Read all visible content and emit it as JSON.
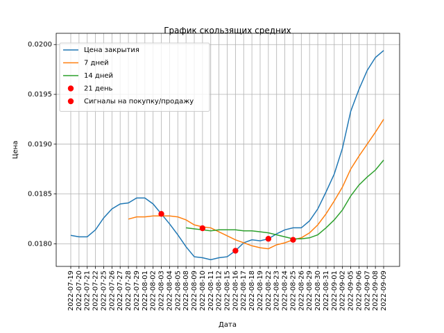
{
  "chart_data": {
    "type": "line",
    "title": "График скользящих средних",
    "xlabel": "Дата",
    "ylabel": "Цена",
    "categories": [
      "2022-07-19",
      "2022-07-20",
      "2022-07-21",
      "2022-07-22",
      "2022-07-25",
      "2022-07-26",
      "2022-07-27",
      "2022-07-28",
      "2022-07-29",
      "2022-08-01",
      "2022-08-02",
      "2022-08-03",
      "2022-08-04",
      "2022-08-05",
      "2022-08-08",
      "2022-08-09",
      "2022-08-10",
      "2022-08-11",
      "2022-08-12",
      "2022-08-15",
      "2022-08-16",
      "2022-08-17",
      "2022-08-18",
      "2022-08-19",
      "2022-08-22",
      "2022-08-23",
      "2022-08-24",
      "2022-08-25",
      "2022-08-26",
      "2022-08-29",
      "2022-08-30",
      "2022-08-31",
      "2022-09-01",
      "2022-09-02",
      "2022-09-05",
      "2022-09-06",
      "2022-09-07",
      "2022-09-08",
      "2022-09-09"
    ],
    "series": [
      {
        "name": "Цена закрытия",
        "color": "#1f77b4",
        "style": "line",
        "values": [
          0.018085,
          0.01807,
          0.01807,
          0.01814,
          0.01826,
          0.01835,
          0.0184,
          0.01841,
          0.01846,
          0.01846,
          0.0184,
          0.0183,
          0.0182,
          0.01809,
          0.01797,
          0.01787,
          0.01786,
          0.01784,
          0.01786,
          0.01787,
          0.01793,
          0.01801,
          0.01804,
          0.01803,
          0.01805,
          0.0181,
          0.01814,
          0.01816,
          0.01816,
          0.01823,
          0.01835,
          0.01852,
          0.0187,
          0.01896,
          0.01933,
          0.01955,
          0.01974,
          0.01987,
          0.01994
        ]
      },
      {
        "name": "7 дней",
        "color": "#ff7f0e",
        "style": "line",
        "values": [
          null,
          null,
          null,
          null,
          null,
          null,
          null,
          0.018248,
          0.01827,
          0.01827,
          0.01828,
          0.01828,
          0.01828,
          0.01827,
          0.01824,
          0.01819,
          0.01817,
          0.01816,
          0.01812,
          0.01808,
          0.01804,
          0.01801,
          0.01798,
          0.01796,
          0.01795,
          0.01799,
          0.01801,
          0.01804,
          0.01806,
          0.01811,
          0.01819,
          0.0183,
          0.01843,
          0.01857,
          0.01875,
          0.01888,
          0.019,
          0.01912,
          0.01925
        ]
      },
      {
        "name": "14 дней",
        "color": "#2ca02c",
        "style": "line",
        "values": [
          null,
          null,
          null,
          null,
          null,
          null,
          null,
          null,
          null,
          null,
          null,
          null,
          null,
          null,
          0.01816,
          0.01815,
          0.01814,
          0.01813,
          0.01814,
          0.01814,
          0.01814,
          0.01813,
          0.01813,
          0.01812,
          0.01811,
          0.01809,
          0.01807,
          0.01805,
          0.01805,
          0.01806,
          0.01809,
          0.01816,
          0.01824,
          0.01834,
          0.01848,
          0.01859,
          0.01867,
          0.01874,
          0.01884
        ]
      },
      {
        "name": "21 день",
        "color": "#ff0000",
        "style": "marker",
        "values": [
          null,
          null,
          null,
          null,
          null,
          null,
          null,
          null,
          null,
          null,
          null,
          null,
          null,
          null,
          null,
          null,
          null,
          null,
          null,
          null,
          null,
          null,
          null,
          null,
          null,
          null,
          null,
          null,
          null,
          null,
          null,
          null,
          null,
          null,
          null,
          null,
          null,
          null,
          null
        ]
      },
      {
        "name": "Сигналы на покупку/продажу",
        "color": "#ff0000",
        "style": "marker",
        "values": [
          null,
          null,
          null,
          null,
          null,
          null,
          null,
          null,
          null,
          null,
          null,
          0.0183,
          null,
          null,
          null,
          null,
          0.018156,
          null,
          null,
          null,
          0.01793,
          null,
          null,
          null,
          0.01805,
          null,
          null,
          0.01804,
          null,
          null,
          null,
          null,
          null,
          null,
          null,
          null,
          null,
          null,
          null
        ]
      }
    ],
    "ylim": [
      0.017773,
      0.020113
    ],
    "yticks": [
      {
        "value": 0.018,
        "label": "0.0180"
      },
      {
        "value": 0.0185,
        "label": "0.0185"
      },
      {
        "value": 0.019,
        "label": "0.0190"
      },
      {
        "value": 0.0195,
        "label": "0.0195"
      },
      {
        "value": 0.02,
        "label": "0.0200"
      }
    ],
    "grid": true,
    "legend": "upper left"
  }
}
